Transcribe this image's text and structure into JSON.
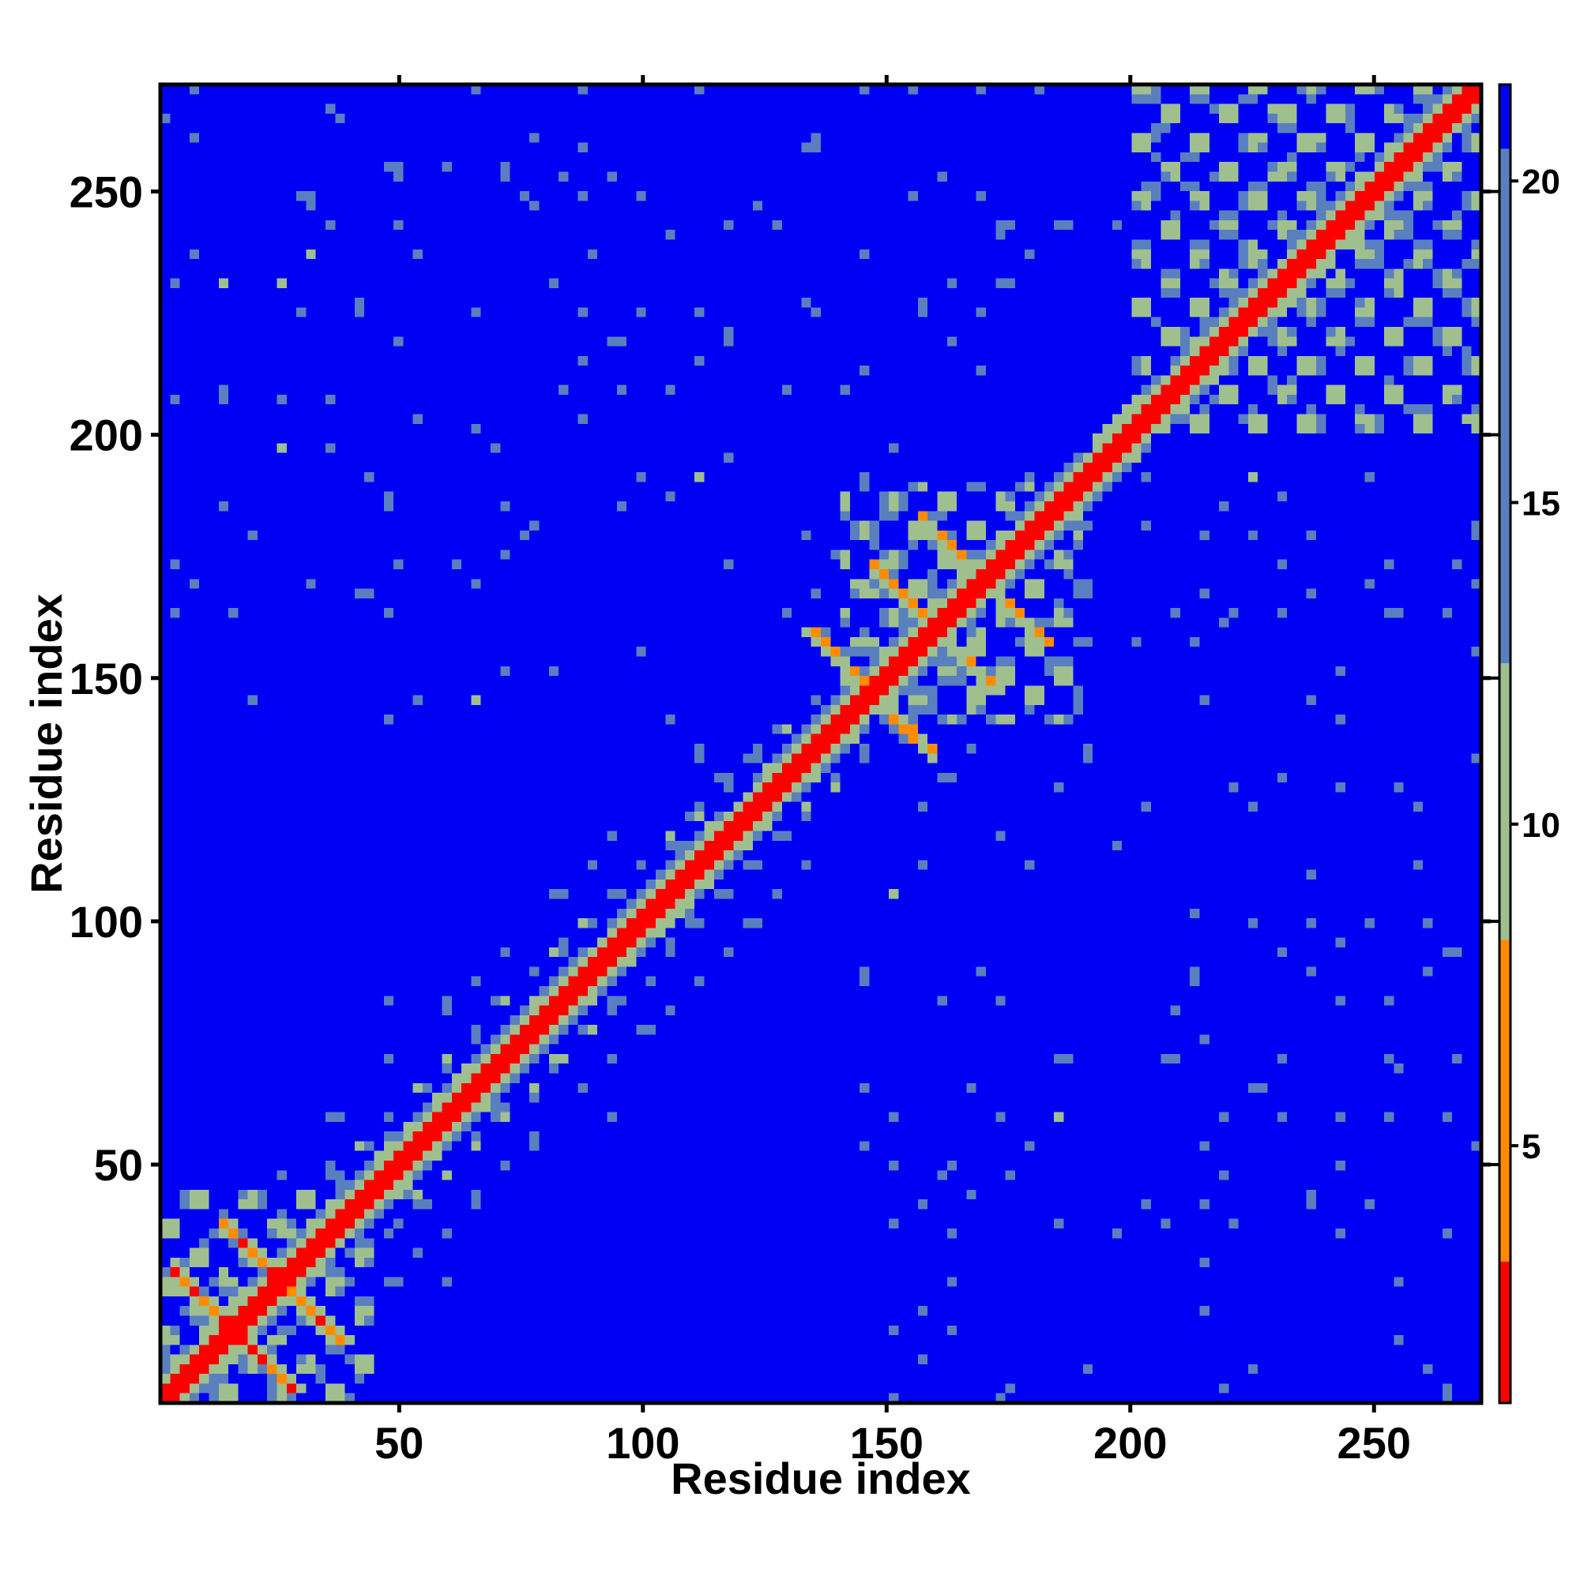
{
  "chart_data": {
    "type": "heatmap",
    "title": "",
    "xlabel": "Residue index",
    "ylabel": "Residue index",
    "xlim": [
      1,
      272
    ],
    "ylim": [
      1,
      272
    ],
    "x_ticks": [
      50,
      100,
      150,
      200,
      250
    ],
    "y_ticks": [
      50,
      100,
      150,
      200,
      250
    ],
    "x_tick_labels": [
      "50",
      "100",
      "150",
      "200",
      "250"
    ],
    "y_tick_labels": [
      "50",
      "100",
      "150",
      "200",
      "250"
    ],
    "colorbar": {
      "min": 1,
      "max": 21.5,
      "ticks": [
        5,
        10,
        15,
        20
      ],
      "tick_labels": [
        "5",
        "10",
        "15",
        "20"
      ],
      "colors": {
        "close": "#ff0000",
        "near": "#ff8c00",
        "mid": "#9fbf8f",
        "far": "#5a7fbf",
        "background": "#0000f5"
      }
    },
    "grid": false,
    "legend": "none",
    "contact_features": {
      "diagonal": true,
      "antiparallel_crossings_at_residue": [
        16,
        26,
        147,
        160,
        170
      ],
      "helix_blocks": [
        [
          1,
          45
        ],
        [
          140,
          190
        ],
        [
          200,
          272
        ]
      ]
    }
  }
}
